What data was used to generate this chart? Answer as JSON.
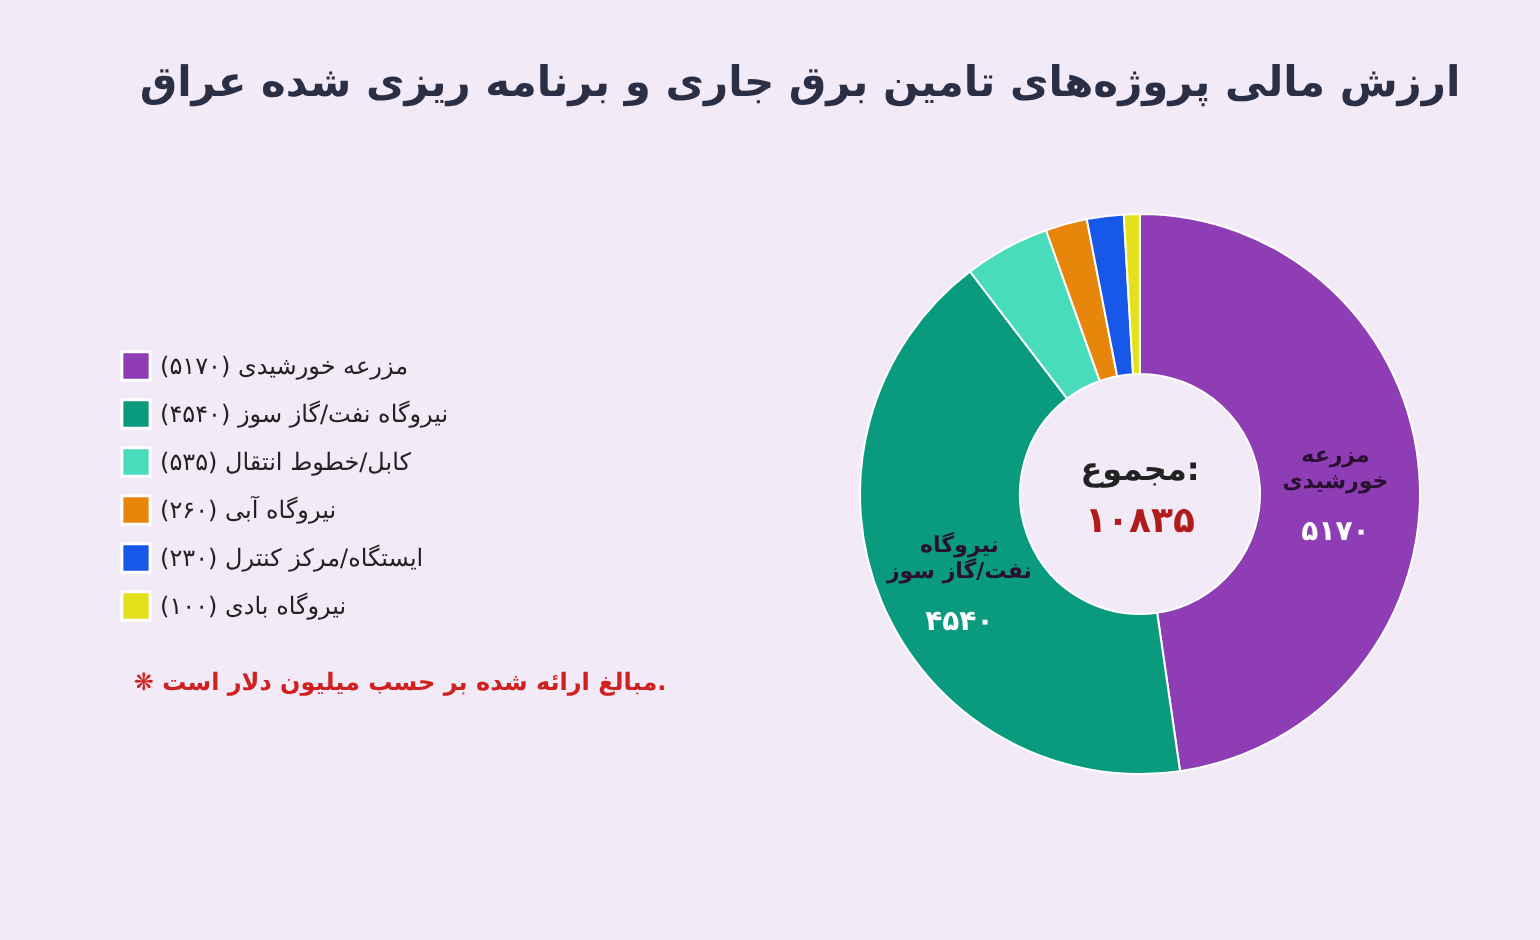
{
  "chart_data": {
    "type": "donut",
    "title": "ارزش مالی پروژه‌های تامین برق جاری و برنامه ریزی شده عراق",
    "categories": [
      "مزرعه خورشیدی (۵۱۷۰)",
      "نیروگاه نفت/گاز سوز (۴۵۴۰)",
      "کابل/خطوط انتقال (۵۳۵)",
      "نیروگاه آبی (۲۶۰)",
      "ایستگاه/مرکز کنترل (۲۳۰)",
      "نیروگاه بادی (۱۰۰)"
    ],
    "values": [
      5170,
      4540,
      535,
      260,
      230,
      100
    ],
    "value_labels": [
      "۵۱۷۰",
      "۴۵۴۰",
      null,
      null,
      null,
      null
    ],
    "colors": [
      "#8e3db5",
      "#0a9a7e",
      "#48dcbc",
      "#e8860c",
      "#1858e8",
      "#e4e01c"
    ],
    "legend": "left",
    "annotations": [
      "مجموع:",
      "۱۰۸۳۵",
      "❋ مبالغ ارائه شده بر حسب میلیون دلار است.",
      {
        "text": "مزرعه خورشیدی",
        "x": "مزرعه خورشیدی (۵۱۷۰)"
      },
      {
        "text": "نیروگاه نفت/گاز سوز",
        "x": "نیروگاه نفت/گاز سوز (۴۵۴۰)"
      }
    ]
  }
}
